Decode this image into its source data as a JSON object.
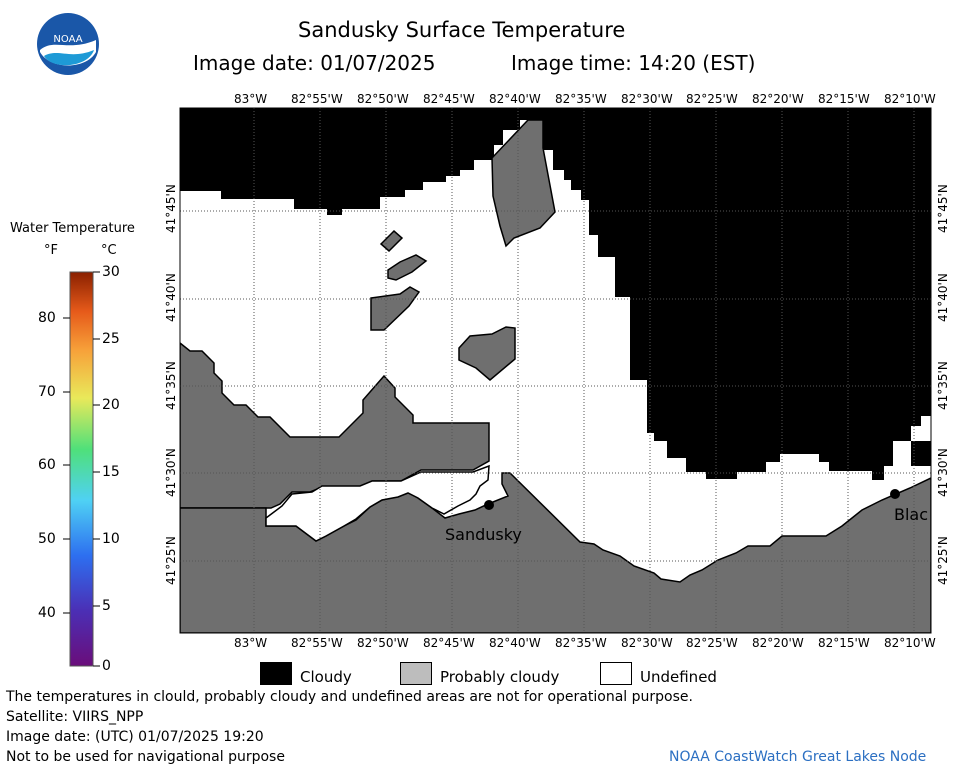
{
  "header": {
    "title": "Sandusky Surface Temperature",
    "image_date_label": "Image date: 01/07/2025",
    "image_time_label": "Image time: 14:20 (EST)",
    "logo_text": "NOAA"
  },
  "map": {
    "lon_ticks": [
      "83°W",
      "82°55'W",
      "82°50'W",
      "82°45'W",
      "82°40'W",
      "82°35'W",
      "82°30'W",
      "82°25'W",
      "82°20'W",
      "82°15'W",
      "82°10'W"
    ],
    "lat_ticks": [
      "41°45'N",
      "41°40'N",
      "41°35'N",
      "41°30'N",
      "41°25'N"
    ],
    "places": [
      {
        "name": "Sandusky"
      },
      {
        "name": "Blac"
      }
    ],
    "colors": {
      "cloudy": "#000000",
      "probably_cloudy": "#6f6f6f",
      "undefined": "#ffffff",
      "grid": "#555555"
    }
  },
  "colorbar": {
    "title": "Water Temperature",
    "unit_f": "°F",
    "unit_c": "°C",
    "f_ticks": [
      "80",
      "70",
      "60",
      "50",
      "40"
    ],
    "c_ticks": [
      "30",
      "25",
      "20",
      "15",
      "10",
      "5",
      "0"
    ]
  },
  "legend": {
    "cloudy": "Cloudy",
    "probably_cloudy": "Probably cloudy",
    "undefined": "Undefined"
  },
  "footer": {
    "disclaimer": "The temperatures in clould, probably cloudy and undefined areas are not for operational purpose.",
    "satellite": "Satellite: VIIRS_NPP",
    "utc_date": "Image date: (UTC) 01/07/2025  19:20",
    "nav_warning": "Not to be used for navigational purpose",
    "credit": "NOAA CoastWatch Great Lakes Node"
  }
}
